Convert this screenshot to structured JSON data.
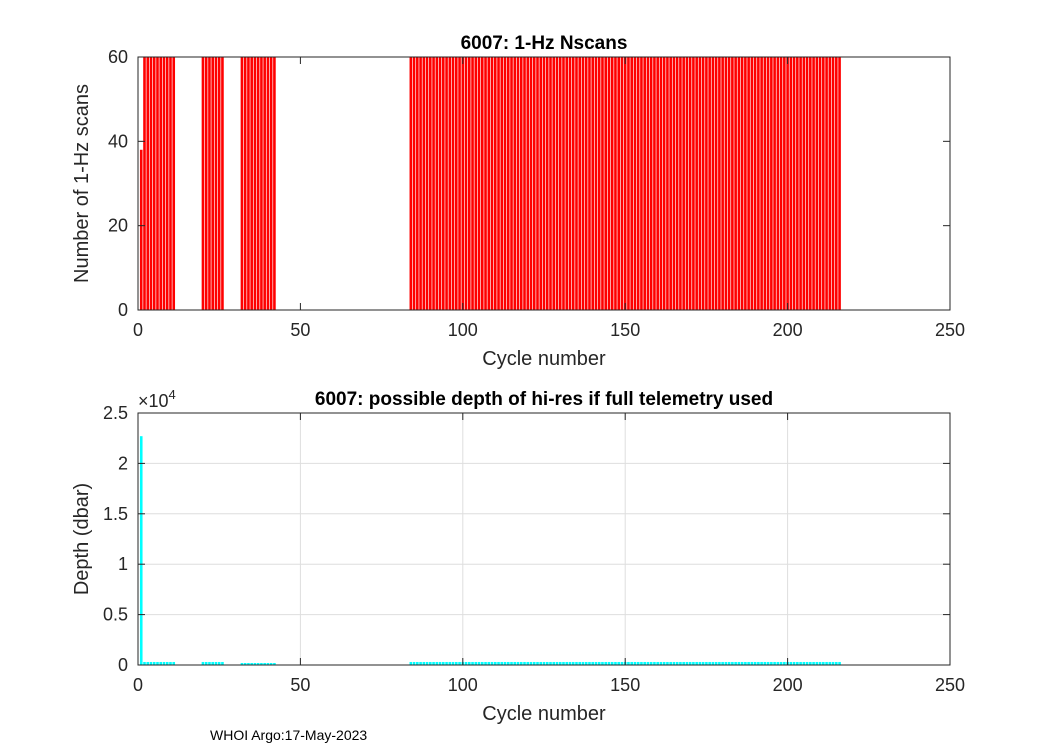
{
  "footer": "WHOI Argo:17-May-2023",
  "chart_data": [
    {
      "type": "bar",
      "title": "6007: 1-Hz Nscans",
      "xlabel": "Cycle number",
      "ylabel": "Number of 1-Hz scans",
      "xlim": [
        0,
        250
      ],
      "ylim": [
        0,
        60
      ],
      "xticks": [
        0,
        50,
        100,
        150,
        200,
        250
      ],
      "yticks": [
        0,
        20,
        40,
        60
      ],
      "grid": false,
      "color": "#ff0000",
      "groups": [
        {
          "first": 1,
          "last": 1,
          "value": 38
        },
        {
          "first": 2,
          "last": 11,
          "value": 60
        },
        {
          "first": 20,
          "last": 26,
          "value": 60
        },
        {
          "first": 32,
          "last": 42,
          "value": 60
        },
        {
          "first": 84,
          "last": 216,
          "value": 60
        }
      ]
    },
    {
      "type": "bar",
      "title": "6007: possible depth of hi-res if full telemetry used",
      "xlabel": "Cycle number",
      "ylabel": "Depth (dbar)",
      "multiplier": "×10",
      "exponent": "4",
      "xlim": [
        0,
        250
      ],
      "ylim": [
        0,
        2.5
      ],
      "xticks": [
        0,
        50,
        100,
        150,
        200,
        250
      ],
      "yticks": [
        0,
        0.5,
        1,
        1.5,
        2,
        2.5
      ],
      "grid": true,
      "color": "#00ffff",
      "groups": [
        {
          "first": 1,
          "last": 1,
          "value": 2.27
        },
        {
          "first": 2,
          "last": 11,
          "value": 0.03
        },
        {
          "first": 20,
          "last": 26,
          "value": 0.03
        },
        {
          "first": 32,
          "last": 42,
          "value": 0.02
        },
        {
          "first": 84,
          "last": 216,
          "value": 0.03
        }
      ]
    }
  ]
}
